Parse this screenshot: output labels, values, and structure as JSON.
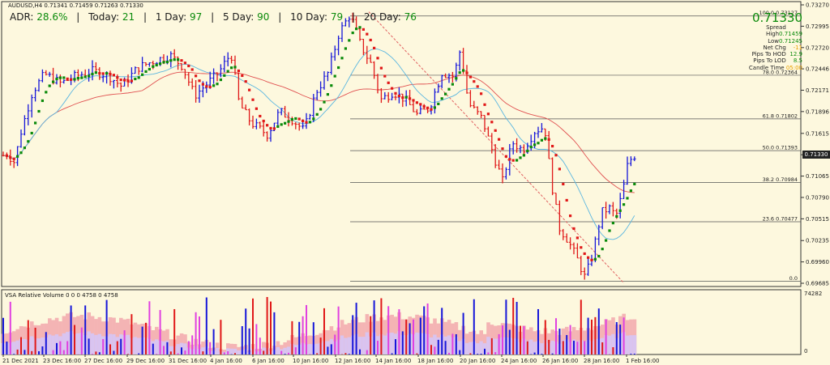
{
  "symbol_line": "AUDUSD,H4  0.71341 0.71459 0.71263 0.71330",
  "hud": {
    "adr_label": "ADR:",
    "adr_value": "28.6%",
    "today_label": "Today:",
    "today_value": "21",
    "day1_label": "1 Day:",
    "day1_value": "97",
    "day5_label": "5 Day:",
    "day5_value": "90",
    "day10_label": "10 Day:",
    "day10_value": "79",
    "day20_label": "20 Day:",
    "day20_value": "76",
    "separator": "|"
  },
  "info_panel": {
    "price": "0.71330",
    "spread_label": "Spread",
    "spread_value": "",
    "high_label": "High",
    "high_value": "0.71459",
    "low_label": "Low",
    "low_value": "0.71245",
    "netchg_label": "Net Chg",
    "netchg_value": "-11",
    "pips_hod_label": "Pips To HOD",
    "pips_hod_value": "12.9",
    "pips_lod_label": "Pips To LOD",
    "pips_lod_value": "8.5",
    "candle_label": "Candle Time",
    "candle_value": "05:00"
  },
  "price_axis": [
    "0.73270",
    "0.72995",
    "0.72720",
    "0.72446",
    "0.72171",
    "0.71896",
    "0.71615",
    "0.71340",
    "0.71065",
    "0.70790",
    "0.70515",
    "0.70235",
    "0.69960",
    "0.69685"
  ],
  "current_price_label": "0.71330",
  "fib_levels": [
    {
      "label": "100.0",
      "value": "0.73127"
    },
    {
      "label": "78.0",
      "value": "0.72364"
    },
    {
      "label": "61.8",
      "value": "0.71802"
    },
    {
      "label": "50.0",
      "value": "0.71393"
    },
    {
      "label": "38.2",
      "value": "0.70984"
    },
    {
      "label": "23.6",
      "value": "0.70477"
    },
    {
      "label": "0.0",
      "value": ""
    }
  ],
  "volume_title": "VSA Relative Volume 0 0 0 4758 0 4758",
  "volume_axis": [
    "74282",
    "0"
  ],
  "time_axis": [
    "21 Dec 2021",
    "23 Dec 16:00",
    "27 Dec 16:00",
    "29 Dec 16:00",
    "31 Dec 16:00",
    "4 Jan 16:00",
    "6 Jan 16:00",
    "10 Jan 16:00",
    "12 Jan 16:00",
    "14 Jan 16:00",
    "18 Jan 16:00",
    "20 Jan 16:00",
    "24 Jan 16:00",
    "26 Jan 16:00",
    "28 Jan 16:00",
    "1 Feb 16:00"
  ],
  "colors": {
    "background": "#fdf8de",
    "bull_candle": "#1616d9",
    "bear_candle": "#e01818",
    "trend_up": "#0a8a0a",
    "trend_down": "#e01818",
    "ma_fast": "#5ab6e0",
    "ma_slow": "#e05050",
    "fib_line": "#555555"
  }
}
